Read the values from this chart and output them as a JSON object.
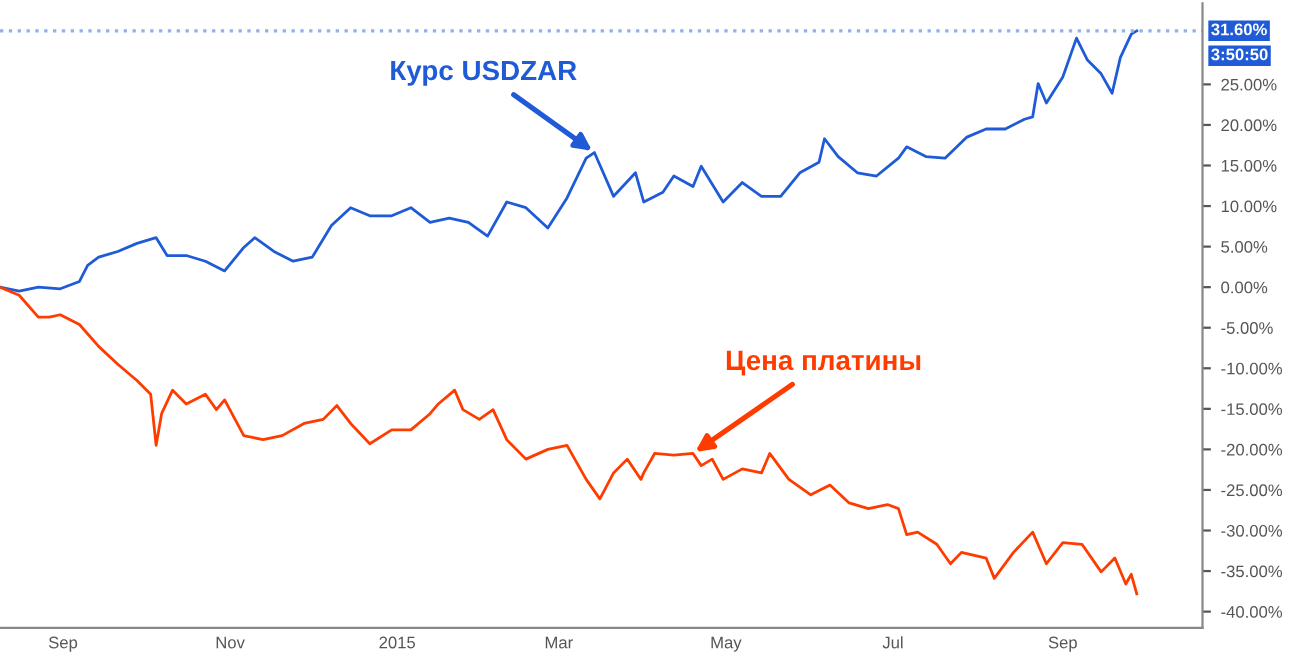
{
  "chart_data": {
    "type": "line",
    "xlim": [
      "2014-08-09",
      "2015-10-22"
    ],
    "xticks": [
      {
        "value": "2014-09-01",
        "label": "Sep"
      },
      {
        "value": "2014-11-01",
        "label": "Nov"
      },
      {
        "value": "2015-01-01",
        "label": "2015"
      },
      {
        "value": "2015-03-01",
        "label": "Mar"
      },
      {
        "value": "2015-05-01",
        "label": "May"
      },
      {
        "value": "2015-07-01",
        "label": "Jul"
      },
      {
        "value": "2015-09-01",
        "label": "Sep"
      }
    ],
    "ylim": [
      -42,
      35
    ],
    "yticks": [
      {
        "value": -40,
        "label": "-40.00%"
      },
      {
        "value": -35,
        "label": "-35.00%"
      },
      {
        "value": -30,
        "label": "-30.00%"
      },
      {
        "value": -25,
        "label": "-25.00%"
      },
      {
        "value": -20,
        "label": "-20.00%"
      },
      {
        "value": -15,
        "label": "-15.00%"
      },
      {
        "value": -10,
        "label": "-10.00%"
      },
      {
        "value": -5,
        "label": "-5.00%"
      },
      {
        "value": 0,
        "label": "0.00%"
      },
      {
        "value": 5,
        "label": "5.00%"
      },
      {
        "value": 10,
        "label": "10.00%"
      },
      {
        "value": 15,
        "label": "15.00%"
      },
      {
        "value": 20,
        "label": "20.00%"
      },
      {
        "value": 25,
        "label": "25.00%"
      }
    ],
    "grid": false,
    "legend": false,
    "marker": "none",
    "line_style": "solid",
    "series": [
      {
        "color": "#1f5bd6",
        "x": [
          "2014-08-09",
          "2014-08-16",
          "2014-08-23",
          "2014-08-31",
          "2014-09-07",
          "2014-09-10",
          "2014-09-14",
          "2014-09-21",
          "2014-09-28",
          "2014-10-05",
          "2014-10-09",
          "2014-10-16",
          "2014-10-23",
          "2014-10-30",
          "2014-11-06",
          "2014-11-10",
          "2014-11-17",
          "2014-11-24",
          "2014-12-01",
          "2014-12-08",
          "2014-12-15",
          "2014-12-22",
          "2014-12-30",
          "2015-01-06",
          "2015-01-13",
          "2015-01-20",
          "2015-01-27",
          "2015-02-03",
          "2015-02-10",
          "2015-02-17",
          "2015-02-25",
          "2015-03-04",
          "2015-03-11",
          "2015-03-14",
          "2015-03-21",
          "2015-03-29",
          "2015-04-01",
          "2015-04-08",
          "2015-04-12",
          "2015-04-19",
          "2015-04-22",
          "2015-04-30",
          "2015-05-07",
          "2015-05-14",
          "2015-05-21",
          "2015-05-28",
          "2015-06-04",
          "2015-06-06",
          "2015-06-11",
          "2015-06-18",
          "2015-06-25",
          "2015-07-03",
          "2015-07-06",
          "2015-07-13",
          "2015-07-20",
          "2015-07-28",
          "2015-08-04",
          "2015-08-11",
          "2015-08-18",
          "2015-08-21",
          "2015-08-23",
          "2015-08-26",
          "2015-09-01",
          "2015-09-06",
          "2015-09-10",
          "2015-09-15",
          "2015-09-19",
          "2015-09-22",
          "2015-09-26",
          "2015-09-28"
        ],
        "values": [
          0,
          -0.5,
          0,
          -0.2,
          0.7,
          2.7,
          3.7,
          4.4,
          5.4,
          6.1,
          3.9,
          3.9,
          3.2,
          2.0,
          4.9,
          6.1,
          4.4,
          3.2,
          3.7,
          7.6,
          9.8,
          8.8,
          8.8,
          9.8,
          8.0,
          8.5,
          8.0,
          6.3,
          10.5,
          9.8,
          7.3,
          11.0,
          15.9,
          16.6,
          11.2,
          14.1,
          10.5,
          11.7,
          13.7,
          12.4,
          14.9,
          10.5,
          12.9,
          11.2,
          11.2,
          14.1,
          15.4,
          18.3,
          16.1,
          14.1,
          13.7,
          15.9,
          17.3,
          16.1,
          15.9,
          18.5,
          19.5,
          19.5,
          20.7,
          21.0,
          25.1,
          22.7,
          25.9,
          30.7,
          28.0,
          26.3,
          23.9,
          28.3,
          31.2,
          31.6
        ]
      },
      {
        "color": "#ff3c00",
        "x": [
          "2014-08-09",
          "2014-08-16",
          "2014-08-23",
          "2014-08-27",
          "2014-08-31",
          "2014-09-07",
          "2014-09-14",
          "2014-09-21",
          "2014-09-28",
          "2014-10-03",
          "2014-10-05",
          "2014-10-07",
          "2014-10-11",
          "2014-10-16",
          "2014-10-23",
          "2014-10-27",
          "2014-10-30",
          "2014-11-06",
          "2014-11-13",
          "2014-11-20",
          "2014-11-28",
          "2014-12-05",
          "2014-12-10",
          "2014-12-15",
          "2014-12-22",
          "2014-12-30",
          "2015-01-06",
          "2015-01-13",
          "2015-01-16",
          "2015-01-22",
          "2015-01-25",
          "2015-01-31",
          "2015-02-05",
          "2015-02-10",
          "2015-02-17",
          "2015-02-25",
          "2015-03-04",
          "2015-03-11",
          "2015-03-16",
          "2015-03-21",
          "2015-03-26",
          "2015-03-31",
          "2015-04-01",
          "2015-04-05",
          "2015-04-12",
          "2015-04-19",
          "2015-04-22",
          "2015-04-26",
          "2015-04-30",
          "2015-05-07",
          "2015-05-14",
          "2015-05-17",
          "2015-05-24",
          "2015-06-01",
          "2015-06-08",
          "2015-06-15",
          "2015-06-22",
          "2015-06-29",
          "2015-07-03",
          "2015-07-06",
          "2015-07-10",
          "2015-07-17",
          "2015-07-22",
          "2015-07-26",
          "2015-08-04",
          "2015-08-07",
          "2015-08-14",
          "2015-08-21",
          "2015-08-26",
          "2015-09-01",
          "2015-09-08",
          "2015-09-15",
          "2015-09-20",
          "2015-09-24",
          "2015-09-26",
          "2015-09-28"
        ],
        "values": [
          0,
          -1.0,
          -3.7,
          -3.7,
          -3.4,
          -4.6,
          -7.3,
          -9.5,
          -11.5,
          -13.2,
          -19.5,
          -15.6,
          -12.7,
          -14.4,
          -13.2,
          -15.1,
          -13.9,
          -18.3,
          -18.8,
          -18.3,
          -16.8,
          -16.3,
          -14.6,
          -16.8,
          -19.3,
          -17.6,
          -17.6,
          -15.6,
          -14.4,
          -12.7,
          -15.1,
          -16.3,
          -15.1,
          -18.8,
          -21.2,
          -20.0,
          -19.5,
          -23.7,
          -26.1,
          -22.9,
          -21.2,
          -23.7,
          -22.9,
          -20.5,
          -20.7,
          -20.5,
          -22.0,
          -21.2,
          -23.7,
          -22.4,
          -22.9,
          -20.5,
          -23.7,
          -25.6,
          -24.4,
          -26.6,
          -27.3,
          -26.8,
          -27.3,
          -30.5,
          -30.2,
          -31.7,
          -34.1,
          -32.7,
          -33.4,
          -35.9,
          -32.7,
          -30.2,
          -34.1,
          -31.5,
          -31.7,
          -35.1,
          -33.4,
          -36.6,
          -35.4,
          -37.8
        ]
      }
    ],
    "ref_lines": [
      {
        "axis": "y",
        "value": 31.6,
        "label": "31.60%",
        "color": "#8fb3ea",
        "line_style": "dotted"
      }
    ],
    "annotations": [
      {
        "text": "Курс USDZAR",
        "x": "2015-03-14",
        "y": 16.6
      },
      {
        "text": "Цена платины",
        "x": "2015-04-19",
        "y": -20.5
      },
      "3:50:50"
    ]
  }
}
